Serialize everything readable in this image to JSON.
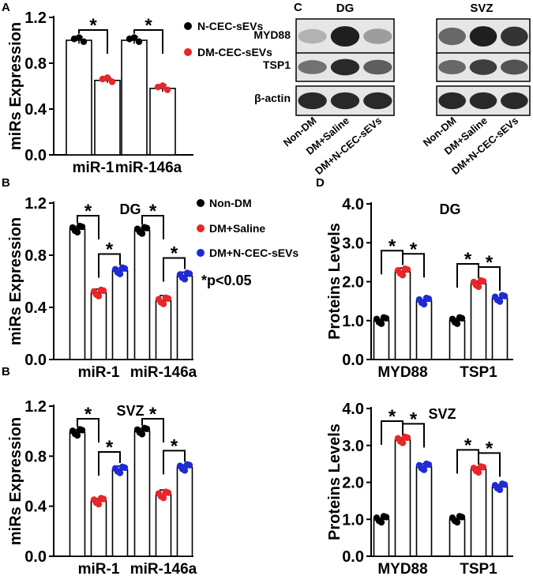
{
  "panels": {
    "A": "A",
    "B1": "B",
    "B2": "B",
    "C": "C",
    "D1": "D"
  },
  "legend_a": [
    "N-CEC-sEVs",
    "DM-CEC-sEVs"
  ],
  "legend_b": [
    "Non-DM",
    "DM+Saline",
    "DM+N-CEC-sEVs"
  ],
  "pvalue_note": "*p<0.05",
  "sig_mark": "*",
  "colors": {
    "group1": "#000000",
    "group2": "#e8262a",
    "group3": "#1f2bd6"
  },
  "blot": {
    "regions": [
      "DG",
      "SVZ"
    ],
    "proteins": [
      "MYD88",
      "TSP1",
      "β-actin"
    ],
    "lanes": [
      "Non-DM",
      "DM+Saline",
      "DM+N-CEC-sEVs"
    ]
  },
  "chart_data": [
    {
      "type": "bar",
      "id": "A",
      "ylabel": "miRs Expression",
      "title": "",
      "categories": [
        "miR-1",
        "miR-146a"
      ],
      "ylim": [
        0.0,
        1.2
      ],
      "yticks": [
        "0.0",
        "0.4",
        "0.8",
        "1.2"
      ],
      "series": [
        {
          "name": "N-CEC-sEVs",
          "values": [
            1.0,
            1.0
          ],
          "errors": [
            0.03,
            0.03
          ]
        },
        {
          "name": "DM-CEC-sEVs",
          "values": [
            0.65,
            0.58
          ],
          "errors": [
            0.02,
            0.03
          ]
        }
      ]
    },
    {
      "type": "bar",
      "id": "B-DG",
      "ylabel": "miRs Expression",
      "title": "DG",
      "categories": [
        "miR-1",
        "miR-146a"
      ],
      "ylim": [
        0.0,
        1.2
      ],
      "yticks": [
        "0.0",
        "0.4",
        "0.8",
        "1.2"
      ],
      "series": [
        {
          "name": "Non-DM",
          "values": [
            1.0,
            0.99
          ],
          "errors": [
            0.02,
            0.02
          ]
        },
        {
          "name": "DM+Saline",
          "values": [
            0.51,
            0.45
          ],
          "errors": [
            0.03,
            0.04
          ]
        },
        {
          "name": "DM+N-CEC-sEVs",
          "values": [
            0.68,
            0.64
          ],
          "errors": [
            0.02,
            0.03
          ]
        }
      ]
    },
    {
      "type": "bar",
      "id": "B-SVZ",
      "ylabel": "miRs Expression",
      "title": "SVZ",
      "categories": [
        "miR-1",
        "miR-146a"
      ],
      "ylim": [
        0.0,
        1.2
      ],
      "yticks": [
        "0.0",
        "0.4",
        "0.8",
        "1.2"
      ],
      "series": [
        {
          "name": "Non-DM",
          "values": [
            0.99,
            1.0
          ],
          "errors": [
            0.02,
            0.02
          ]
        },
        {
          "name": "DM+Saline",
          "values": [
            0.44,
            0.49
          ],
          "errors": [
            0.02,
            0.04
          ]
        },
        {
          "name": "DM+N-CEC-sEVs",
          "values": [
            0.69,
            0.71
          ],
          "errors": [
            0.03,
            0.02
          ]
        }
      ]
    },
    {
      "type": "bar",
      "id": "D-DG",
      "ylabel": "Proteins Levels",
      "title": "DG",
      "categories": [
        "MYD88",
        "TSP1"
      ],
      "ylim": [
        0.0,
        4.0
      ],
      "yticks": [
        "0.0",
        "1.0",
        "2.0",
        "3.0",
        "4.0"
      ],
      "series": [
        {
          "name": "Non-DM",
          "values": [
            1.0,
            1.0
          ],
          "errors": [
            0.03,
            0.05
          ]
        },
        {
          "name": "DM+Saline",
          "values": [
            2.25,
            1.95
          ],
          "errors": [
            0.1,
            0.06
          ]
        },
        {
          "name": "DM+N-CEC-sEVs",
          "values": [
            1.5,
            1.57
          ],
          "errors": [
            0.03,
            0.02
          ]
        }
      ]
    },
    {
      "type": "bar",
      "id": "D-SVZ",
      "ylabel": "Proteins Levels",
      "title": "SVZ",
      "categories": [
        "MYD88",
        "TSP1"
      ],
      "ylim": [
        0.0,
        4.0
      ],
      "yticks": [
        "0.0",
        "1.0",
        "2.0",
        "3.0",
        "4.0"
      ],
      "series": [
        {
          "name": "Non-DM",
          "values": [
            1.0,
            1.0
          ],
          "errors": [
            0.03,
            0.02
          ]
        },
        {
          "name": "DM+Saline",
          "values": [
            3.15,
            2.35
          ],
          "errors": [
            0.05,
            0.06
          ]
        },
        {
          "name": "DM+N-CEC-sEVs",
          "values": [
            2.42,
            1.88
          ],
          "errors": [
            0.08,
            0.05
          ]
        }
      ]
    }
  ]
}
